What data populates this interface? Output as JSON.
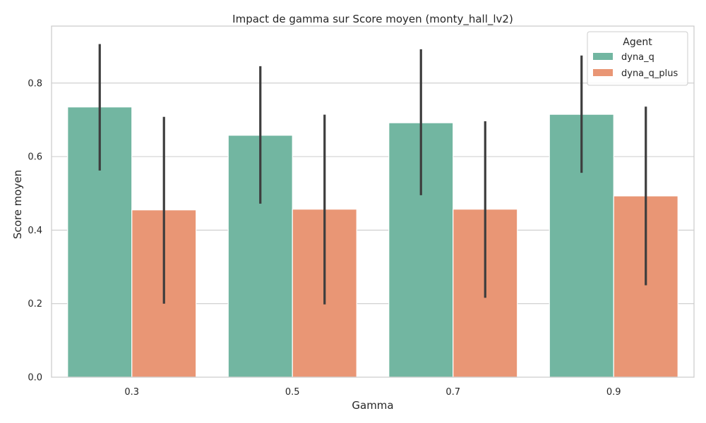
{
  "chart_data": {
    "type": "bar",
    "title": "Impact de gamma sur Score moyen (monty_hall_lv2)",
    "xlabel": "Gamma",
    "ylabel": "Score moyen",
    "categories": [
      "0.3",
      "0.5",
      "0.7",
      "0.9"
    ],
    "ylim": [
      0,
      0.955
    ],
    "yticks": [
      0.0,
      0.2,
      0.4,
      0.6,
      0.8
    ],
    "ytick_labels": [
      "0.0",
      "0.2",
      "0.4",
      "0.6",
      "0.8"
    ],
    "grid": "horizontal",
    "legend": {
      "title": "Agent",
      "position": "top-right"
    },
    "series": [
      {
        "name": "dyna_q",
        "color": "#72b6a1",
        "values": [
          0.735,
          0.658,
          0.692,
          0.715
        ],
        "error_low": [
          0.562,
          0.472,
          0.495,
          0.556
        ],
        "error_high": [
          0.906,
          0.846,
          0.892,
          0.875
        ]
      },
      {
        "name": "dyna_q_plus",
        "color": "#e99675",
        "values": [
          0.455,
          0.457,
          0.457,
          0.493
        ],
        "error_low": [
          0.2,
          0.198,
          0.216,
          0.25
        ],
        "error_high": [
          0.708,
          0.714,
          0.696,
          0.736
        ]
      }
    ]
  }
}
